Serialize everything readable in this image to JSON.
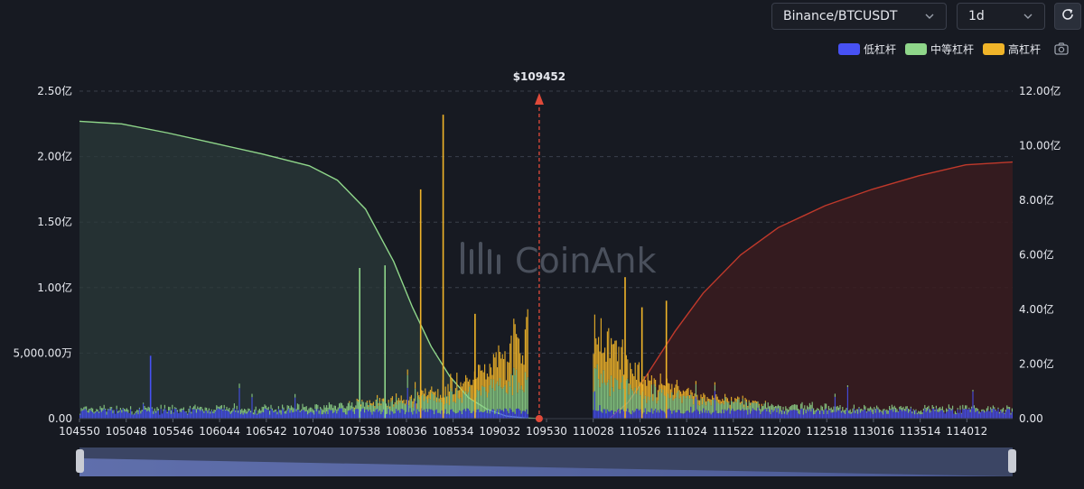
{
  "toolbar": {
    "exchange_value": "Binance/BTCUSDT",
    "interval_value": "1d"
  },
  "icons": {
    "refresh": "refresh-icon",
    "camera": "camera-icon",
    "dropdown": "chevron-down-icon"
  },
  "legend": [
    {
      "label": "低杠杆",
      "color": "#4751f4"
    },
    {
      "label": "中等杠杆",
      "color": "#8fd68a"
    },
    {
      "label": "高杠杆",
      "color": "#f0b429"
    }
  ],
  "watermark": "CoinAnk",
  "chart_data": {
    "type": "bar",
    "current_price": "$109452",
    "current_price_value": 109452,
    "x_range": [
      104550,
      114500
    ],
    "x_ticks": [
      "104550",
      "105048",
      "105546",
      "106044",
      "106542",
      "107040",
      "107538",
      "108036",
      "108534",
      "109032",
      "109530",
      "110028",
      "110526",
      "111024",
      "111522",
      "112020",
      "112518",
      "113016",
      "113514",
      "114012"
    ],
    "y_left_ticks": [
      "0.00",
      "5,000.00万",
      "1.00亿",
      "1.50亿",
      "2.00亿",
      "2.50亿"
    ],
    "y_left_range": [
      0,
      2.5
    ],
    "y_right_ticks": [
      "0.00",
      "2.00亿",
      "4.00亿",
      "6.00亿",
      "8.00亿",
      "10.00亿",
      "12.00亿"
    ],
    "y_right_range": [
      0,
      12
    ],
    "cumulative_long": {
      "color": "#8fd68a",
      "x": [
        104550,
        105000,
        105500,
        106000,
        106500,
        107000,
        107300,
        107600,
        107900,
        108100,
        108300,
        108500,
        108700,
        108900,
        109100,
        109300,
        109452
      ],
      "y": [
        2.27,
        2.25,
        2.18,
        2.1,
        2.02,
        1.93,
        1.82,
        1.6,
        1.2,
        0.85,
        0.55,
        0.32,
        0.16,
        0.07,
        0.02,
        0.005,
        0
      ]
    },
    "cumulative_short": {
      "color": "#c0392b",
      "x": [
        110200,
        110400,
        110600,
        110900,
        111200,
        111600,
        112000,
        112500,
        113000,
        113500,
        114000,
        114500
      ],
      "y": [
        0,
        0.6,
        1.6,
        3.2,
        4.6,
        6.0,
        7.0,
        7.8,
        8.4,
        8.9,
        9.3,
        9.4
      ]
    },
    "peaks": [
      {
        "x": 107530,
        "value": 1.15,
        "series": "中等杠杆"
      },
      {
        "x": 107800,
        "value": 1.17,
        "series": "中等杠杆"
      },
      {
        "x": 108180,
        "value": 1.75,
        "series": "高杠杆"
      },
      {
        "x": 108420,
        "value": 2.32,
        "series": "高杠杆"
      },
      {
        "x": 108760,
        "value": 0.8,
        "series": "高杠杆"
      },
      {
        "x": 110360,
        "value": 1.08,
        "series": "高杠杆"
      },
      {
        "x": 110540,
        "value": 0.85,
        "series": "高杠杆"
      },
      {
        "x": 110800,
        "value": 0.9,
        "series": "高杠杆"
      },
      {
        "x": 105300,
        "value": 0.48,
        "series": "低杠杆"
      }
    ]
  }
}
